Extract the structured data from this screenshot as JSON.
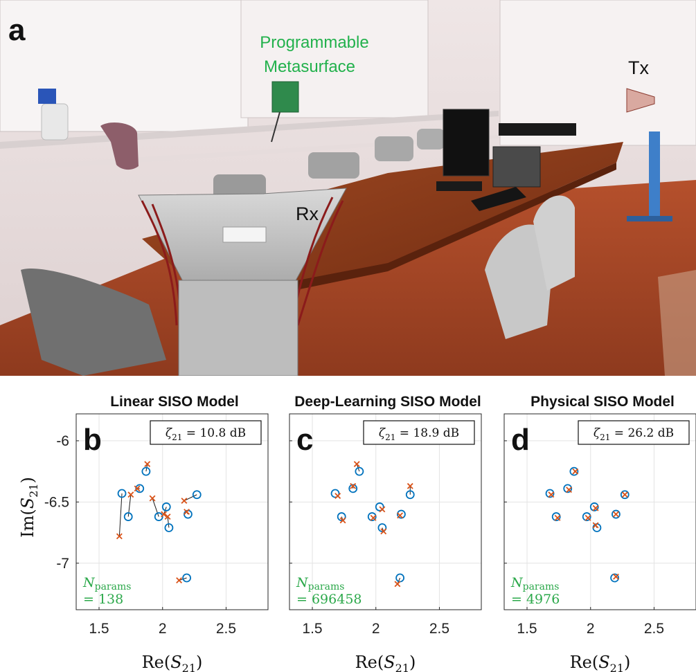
{
  "photo": {
    "panel_label": "a",
    "metasurface_label_line1": "Programmable",
    "metasurface_label_line2": "Metasurface",
    "tx_label": "Tx",
    "rx_label": "Rx"
  },
  "colors": {
    "measured": "#0072BD",
    "predicted": "#D95319",
    "params_text": "#2BA84A",
    "photo_label_green": "#22B14C"
  },
  "axes": {
    "ylabel_main": "Im(",
    "ylabel_sub": "21",
    "xlabel_main": "Re(",
    "xlabel_sub": "21",
    "yticks": [
      "-6",
      "-6.5",
      "-7"
    ],
    "xticks": [
      "1.5",
      "2",
      "2.5"
    ]
  },
  "chart_data": [
    {
      "type": "scatter",
      "title": "Linear SISO Model",
      "panel_label": "b",
      "zeta_value": "= 10.8 dB",
      "nparams_value": "= 138",
      "xlim": [
        1.32,
        2.83
      ],
      "ylim": [
        -7.38,
        -5.78
      ],
      "grid": true,
      "series": [
        {
          "x": [
            1.68,
            1.73,
            1.87,
            1.82,
            1.97,
            2.03,
            2.05,
            2.2,
            2.27,
            2.19
          ],
          "y": [
            -6.43,
            -6.62,
            -6.25,
            -6.39,
            -6.62,
            -6.54,
            -6.71,
            -6.6,
            -6.44,
            -7.12
          ]
        },
        {
          "x": [
            1.66,
            1.75,
            1.88,
            1.8,
            1.92,
            2.01,
            2.04,
            2.19,
            2.17,
            2.13
          ],
          "y": [
            -6.78,
            -6.44,
            -6.19,
            -6.39,
            -6.47,
            -6.6,
            -6.62,
            -6.58,
            -6.49,
            -7.14
          ]
        }
      ]
    },
    {
      "type": "scatter",
      "title": "Deep-Learning SISO Model",
      "panel_label": "c",
      "zeta_value": "= 18.9 dB",
      "nparams_value": "= 696458",
      "xlim": [
        1.32,
        2.83
      ],
      "ylim": [
        -7.38,
        -5.78
      ],
      "grid": true,
      "series": [
        {
          "x": [
            1.68,
            1.73,
            1.87,
            1.82,
            1.97,
            2.03,
            2.05,
            2.2,
            2.27,
            2.19
          ],
          "y": [
            -6.43,
            -6.62,
            -6.25,
            -6.39,
            -6.62,
            -6.54,
            -6.71,
            -6.6,
            -6.44,
            -7.12
          ]
        },
        {
          "x": [
            1.7,
            1.74,
            1.85,
            1.82,
            1.98,
            2.05,
            2.06,
            2.19,
            2.27,
            2.17
          ],
          "y": [
            -6.45,
            -6.65,
            -6.19,
            -6.37,
            -6.63,
            -6.56,
            -6.74,
            -6.61,
            -6.37,
            -7.17
          ]
        }
      ]
    },
    {
      "type": "scatter",
      "title": "Physical SISO Model",
      "panel_label": "d",
      "zeta_value": "= 26.2 dB",
      "nparams_value": "= 4976",
      "xlim": [
        1.32,
        2.83
      ],
      "ylim": [
        -7.38,
        -5.78
      ],
      "grid": true,
      "series": [
        {
          "x": [
            1.68,
            1.73,
            1.87,
            1.82,
            1.97,
            2.03,
            2.05,
            2.2,
            2.27,
            2.19
          ],
          "y": [
            -6.43,
            -6.62,
            -6.25,
            -6.39,
            -6.62,
            -6.54,
            -6.71,
            -6.6,
            -6.44,
            -7.12
          ]
        },
        {
          "x": [
            1.69,
            1.74,
            1.88,
            1.83,
            1.98,
            2.04,
            2.04,
            2.2,
            2.27,
            2.2
          ],
          "y": [
            -6.44,
            -6.63,
            -6.25,
            -6.4,
            -6.63,
            -6.55,
            -6.69,
            -6.6,
            -6.44,
            -7.11
          ]
        }
      ]
    }
  ]
}
